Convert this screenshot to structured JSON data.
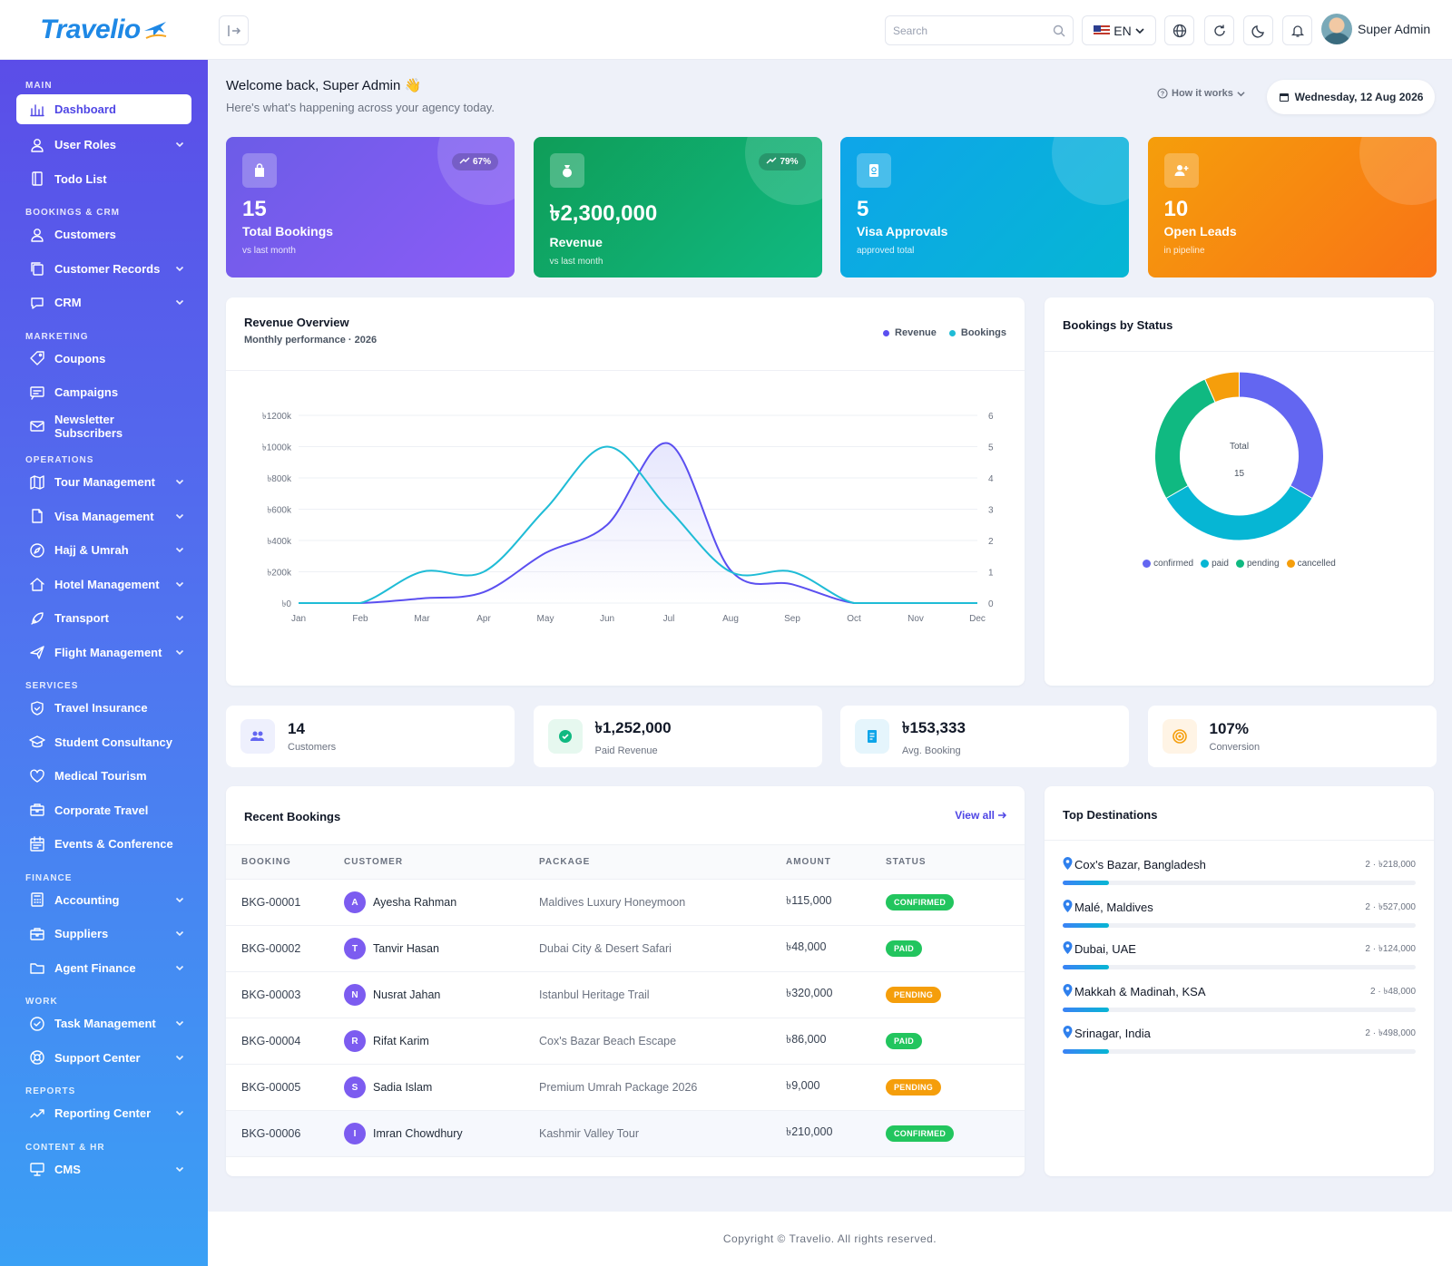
{
  "brand": {
    "name": "Travelio"
  },
  "header": {
    "search_placeholder": "Search",
    "lang": "EN",
    "user_name": "Super Admin"
  },
  "sidebar": {
    "sections": [
      {
        "title": "MAIN",
        "items": [
          {
            "label": "Dashboard",
            "icon": "chart-bar-icon",
            "active": true,
            "chevron": false
          },
          {
            "label": "User Roles",
            "icon": "user-icon",
            "chevron": true
          },
          {
            "label": "Todo List",
            "icon": "notebook-icon",
            "chevron": false
          }
        ]
      },
      {
        "title": "BOOKINGS & CRM",
        "items": [
          {
            "label": "Customers",
            "icon": "user-icon",
            "chevron": false
          },
          {
            "label": "Customer Records",
            "icon": "copy-icon",
            "chevron": true
          },
          {
            "label": "CRM",
            "icon": "chat-icon",
            "chevron": true
          }
        ]
      },
      {
        "title": "MARKETING",
        "items": [
          {
            "label": "Coupons",
            "icon": "tag-icon",
            "chevron": false
          },
          {
            "label": "Campaigns",
            "icon": "message-icon",
            "chevron": false
          },
          {
            "label": "Newsletter Subscribers",
            "icon": "mail-icon",
            "chevron": false
          }
        ]
      },
      {
        "title": "OPERATIONS",
        "items": [
          {
            "label": "Tour Management",
            "icon": "map-icon",
            "chevron": true
          },
          {
            "label": "Visa Management",
            "icon": "file-icon",
            "chevron": true
          },
          {
            "label": "Hajj & Umrah",
            "icon": "compass-icon",
            "chevron": true
          },
          {
            "label": "Hotel Management",
            "icon": "home-icon",
            "chevron": true
          },
          {
            "label": "Transport",
            "icon": "rocket-icon",
            "chevron": true
          },
          {
            "label": "Flight Management",
            "icon": "plane-icon",
            "chevron": true
          }
        ]
      },
      {
        "title": "SERVICES",
        "items": [
          {
            "label": "Travel Insurance",
            "icon": "shield-icon",
            "chevron": false
          },
          {
            "label": "Student Consultancy",
            "icon": "graduation-icon",
            "chevron": false
          },
          {
            "label": "Medical Tourism",
            "icon": "heart-icon",
            "chevron": false
          },
          {
            "label": "Corporate Travel",
            "icon": "briefcase-icon",
            "chevron": false
          },
          {
            "label": "Events & Conference",
            "icon": "calendar-icon",
            "chevron": false
          }
        ]
      },
      {
        "title": "FINANCE",
        "items": [
          {
            "label": "Accounting",
            "icon": "calculator-icon",
            "chevron": true
          },
          {
            "label": "Suppliers",
            "icon": "briefcase-icon",
            "chevron": true
          },
          {
            "label": "Agent Finance",
            "icon": "folder-icon",
            "chevron": true
          }
        ]
      },
      {
        "title": "WORK",
        "items": [
          {
            "label": "Task Management",
            "icon": "check-circle-icon",
            "chevron": true
          },
          {
            "label": "Support Center",
            "icon": "lifebuoy-icon",
            "chevron": true
          }
        ]
      },
      {
        "title": "REPORTS",
        "items": [
          {
            "label": "Reporting Center",
            "icon": "trend-icon",
            "chevron": true
          }
        ]
      },
      {
        "title": "CONTENT & HR",
        "items": [
          {
            "label": "CMS",
            "icon": "monitor-icon",
            "chevron": true
          }
        ]
      }
    ]
  },
  "welcome": {
    "title": "Welcome back, Super Admin 👋",
    "subtitle": "Here's what's happening across your agency today.",
    "how_it_works": "How it works",
    "date": "Wednesday, 12 Aug 2026"
  },
  "kpis": [
    {
      "value": "15",
      "label": "Total Bookings",
      "sub": "vs last month",
      "trend": "67%",
      "color_from": "#6c5ce7",
      "color_to": "#8b5cf6",
      "icon": "bag-icon"
    },
    {
      "value": "৳2,300,000",
      "label": "Revenue",
      "sub": "vs last month",
      "trend": "79%",
      "color_from": "#0f9d58",
      "color_to": "#10b981",
      "icon": "money-bag-icon"
    },
    {
      "value": "5",
      "label": "Visa Approvals",
      "sub": "approved total",
      "trend": "",
      "color_from": "#0ea5e9",
      "color_to": "#06b6d4",
      "icon": "passport-icon"
    },
    {
      "value": "10",
      "label": "Open Leads",
      "sub": "in pipeline",
      "trend": "",
      "color_from": "#f59e0b",
      "color_to": "#f97316",
      "icon": "user-plus-icon"
    }
  ],
  "revenue_chart": {
    "title": "Revenue Overview",
    "subtitle": "Monthly performance · 2026",
    "legend": [
      "Revenue",
      "Bookings"
    ]
  },
  "status_chart": {
    "title": "Bookings by Status",
    "center_label": "Total",
    "center_value": "15",
    "legend": [
      "confirmed",
      "paid",
      "pending",
      "cancelled"
    ]
  },
  "chart_data": [
    {
      "type": "line",
      "title": "Revenue Overview",
      "x": [
        "Jan",
        "Feb",
        "Mar",
        "Apr",
        "May",
        "Jun",
        "Jul",
        "Aug",
        "Sep",
        "Oct",
        "Nov",
        "Dec"
      ],
      "y_left_ticks": [
        "৳0",
        "৳200k",
        "৳400k",
        "৳600k",
        "৳800k",
        "৳1000k",
        "৳1200k"
      ],
      "y_right_ticks": [
        "0",
        "1",
        "2",
        "3",
        "4",
        "5",
        "6"
      ],
      "ylim_left": [
        0,
        1200000
      ],
      "ylim_right": [
        0,
        6
      ],
      "series": [
        {
          "name": "Revenue",
          "axis": "left",
          "color": "#5b4ff0",
          "values": [
            0,
            0,
            30000,
            70000,
            320000,
            500000,
            1020000,
            210000,
            120000,
            0,
            0,
            0
          ]
        },
        {
          "name": "Bookings",
          "axis": "right",
          "color": "#1fbcd6",
          "values": [
            0,
            0,
            1,
            1,
            3,
            5,
            3,
            1,
            1,
            0,
            0,
            0
          ]
        }
      ]
    },
    {
      "type": "pie",
      "title": "Bookings by Status",
      "categories": [
        "confirmed",
        "paid",
        "pending",
        "cancelled"
      ],
      "values": [
        5,
        5,
        4,
        1
      ],
      "colors": [
        "#6366f1",
        "#06b6d4",
        "#10b981",
        "#f59e0b"
      ]
    }
  ],
  "mini_stats": [
    {
      "value": "14",
      "label": "Customers",
      "icon": "users-icon",
      "bg": "#eef0fd",
      "fg": "#6366f1"
    },
    {
      "value": "৳1,252,000",
      "label": "Paid Revenue",
      "icon": "check-circle-icon",
      "bg": "#e6f8ef",
      "fg": "#10b981"
    },
    {
      "value": "৳153,333",
      "label": "Avg. Booking",
      "icon": "receipt-icon",
      "bg": "#e5f5fc",
      "fg": "#0ea5e9"
    },
    {
      "value": "107%",
      "label": "Conversion",
      "icon": "target-icon",
      "bg": "#fff4e5",
      "fg": "#f59e0b"
    }
  ],
  "recent_bookings": {
    "title": "Recent Bookings",
    "view_all": "View all",
    "columns": [
      "BOOKING",
      "CUSTOMER",
      "PACKAGE",
      "AMOUNT",
      "STATUS"
    ],
    "rows": [
      {
        "id": "BKG-00001",
        "initial": "A",
        "customer": "Ayesha Rahman",
        "package": "Maldives Luxury Honeymoon",
        "amount": "৳115,000",
        "status": "CONFIRMED"
      },
      {
        "id": "BKG-00002",
        "initial": "T",
        "customer": "Tanvir Hasan",
        "package": "Dubai City & Desert Safari",
        "amount": "৳48,000",
        "status": "PAID"
      },
      {
        "id": "BKG-00003",
        "initial": "N",
        "customer": "Nusrat Jahan",
        "package": "Istanbul Heritage Trail",
        "amount": "৳320,000",
        "status": "PENDING"
      },
      {
        "id": "BKG-00004",
        "initial": "R",
        "customer": "Rifat Karim",
        "package": "Cox's Bazar Beach Escape",
        "amount": "৳86,000",
        "status": "PAID"
      },
      {
        "id": "BKG-00005",
        "initial": "S",
        "customer": "Sadia Islam",
        "package": "Premium Umrah Package 2026",
        "amount": "৳9,000",
        "status": "PENDING"
      },
      {
        "id": "BKG-00006",
        "initial": "I",
        "customer": "Imran Chowdhury",
        "package": "Kashmir Valley Tour",
        "amount": "৳210,000",
        "status": "CONFIRMED"
      }
    ],
    "status_colors": {
      "CONFIRMED": "#22c55e",
      "PAID": "#22c55e",
      "PENDING": "#f59e0b"
    }
  },
  "destinations": {
    "title": "Top Destinations",
    "items": [
      {
        "name": "Cox's Bazar, Bangladesh",
        "meta": "2 · ৳218,000",
        "share": 0.13
      },
      {
        "name": "Malé, Maldives",
        "meta": "2 · ৳527,000",
        "share": 0.13
      },
      {
        "name": "Dubai, UAE",
        "meta": "2 · ৳124,000",
        "share": 0.13
      },
      {
        "name": "Makkah & Madinah, KSA",
        "meta": "2 · ৳48,000",
        "share": 0.13
      },
      {
        "name": "Srinagar, India",
        "meta": "2 · ৳498,000",
        "share": 0.13
      }
    ]
  },
  "footer": {
    "text": "Copyright © Travelio. All rights reserved."
  }
}
